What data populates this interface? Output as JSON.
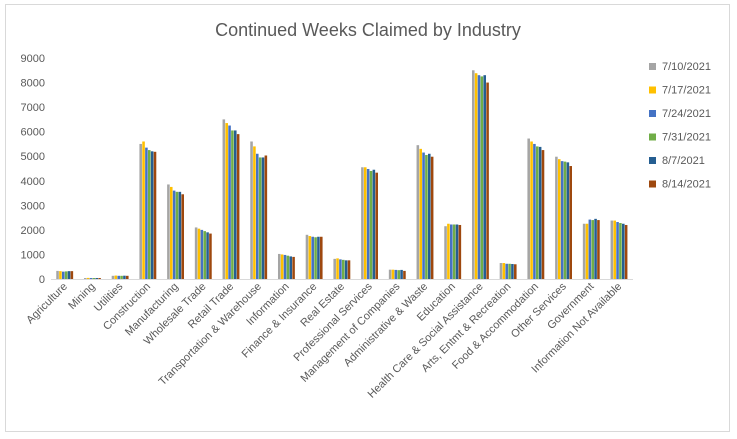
{
  "chart_data": {
    "type": "bar",
    "title": "Continued Weeks Claimed by Industry",
    "xlabel": "",
    "ylabel": "",
    "ylim": [
      0,
      9000
    ],
    "yticks": [
      0,
      1000,
      2000,
      3000,
      4000,
      5000,
      6000,
      7000,
      8000,
      9000
    ],
    "grid": false,
    "legend_position": "right",
    "categories": [
      "Agriculture",
      "Mining",
      "Utilities",
      "Construction",
      "Manufacturing",
      "Wholesale Trade",
      "Retail Trade",
      "Transportation & Warehouse",
      "Information",
      "Finance & Insurance",
      "Real Estate",
      "Professional Services",
      "Management of Companies",
      "Administrative & Waste",
      "Education",
      "Health Care & Social Assistance",
      "Arts, Entmt & Recreation",
      "Food & Accommodation",
      "Other Services",
      "Government",
      "Information Not Available"
    ],
    "series": [
      {
        "name": "7/10/2021",
        "color": "#a5a5a5",
        "values": [
          330,
          40,
          130,
          5500,
          3850,
          2100,
          6500,
          5600,
          1020,
          1800,
          820,
          4550,
          380,
          5450,
          2150,
          8500,
          650,
          5720,
          4980,
          2250,
          2380
        ]
      },
      {
        "name": "7/17/2021",
        "color": "#ffc000",
        "values": [
          320,
          45,
          140,
          5600,
          3750,
          2050,
          6350,
          5400,
          1000,
          1750,
          840,
          4550,
          380,
          5300,
          2250,
          8380,
          650,
          5600,
          4880,
          2250,
          2380
        ]
      },
      {
        "name": "7/24/2021",
        "color": "#4472c4",
        "values": [
          300,
          40,
          130,
          5350,
          3600,
          2000,
          6250,
          5100,
          980,
          1720,
          800,
          4480,
          370,
          5150,
          2220,
          8300,
          620,
          5500,
          4800,
          2420,
          2320
        ]
      },
      {
        "name": "7/31/2021",
        "color": "#70ad47",
        "values": [
          310,
          40,
          130,
          5250,
          3550,
          1950,
          6050,
          4950,
          950,
          1700,
          780,
          4400,
          360,
          5050,
          2220,
          8250,
          620,
          5400,
          4780,
          2400,
          2280
        ]
      },
      {
        "name": "8/7/2021",
        "color": "#255e91",
        "values": [
          320,
          40,
          135,
          5200,
          3550,
          1900,
          6050,
          4950,
          920,
          1720,
          760,
          4450,
          370,
          5100,
          2220,
          8300,
          610,
          5380,
          4750,
          2450,
          2250
        ]
      },
      {
        "name": "8/14/2021",
        "color": "#9e480e",
        "values": [
          320,
          40,
          130,
          5180,
          3450,
          1850,
          5900,
          5030,
          900,
          1720,
          760,
          4330,
          330,
          4980,
          2200,
          8000,
          600,
          5250,
          4600,
          2400,
          2200
        ]
      }
    ]
  }
}
